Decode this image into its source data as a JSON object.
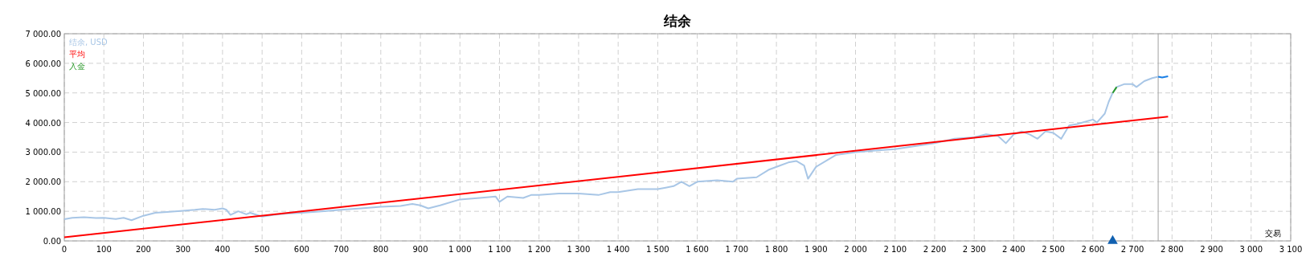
{
  "chart_data": {
    "type": "line",
    "title": "结余",
    "xlabel": "交易",
    "xlim": [
      0,
      3100
    ],
    "ylim": [
      0,
      7000
    ],
    "xticks": [
      0,
      100,
      200,
      300,
      400,
      500,
      600,
      700,
      800,
      900,
      {
        "value": 1000,
        "label": "1 000"
      },
      {
        "value": 1100,
        "label": "1 100"
      },
      {
        "value": 1200,
        "label": "1 200"
      },
      {
        "value": 1300,
        "label": "1 300"
      },
      {
        "value": 1400,
        "label": "1 400"
      },
      {
        "value": 1500,
        "label": "1 500"
      },
      {
        "value": 1600,
        "label": "1 600"
      },
      {
        "value": 1700,
        "label": "1 700"
      },
      {
        "value": 1800,
        "label": "1 800"
      },
      {
        "value": 1900,
        "label": "1 900"
      },
      {
        "value": 2000,
        "label": "2 000"
      },
      {
        "value": 2100,
        "label": "2 100"
      },
      {
        "value": 2200,
        "label": "2 200"
      },
      {
        "value": 2300,
        "label": "2 300"
      },
      {
        "value": 2400,
        "label": "2 400"
      },
      {
        "value": 2500,
        "label": "2 500"
      },
      {
        "value": 2600,
        "label": "2 600"
      },
      {
        "value": 2700,
        "label": "2 700"
      },
      {
        "value": 2800,
        "label": "2 800"
      },
      {
        "value": 2900,
        "label": "2 900"
      },
      {
        "value": 3000,
        "label": "3 000"
      },
      {
        "value": 3100,
        "label": "3 100"
      }
    ],
    "yticks": [
      {
        "value": 0,
        "label": "0.00"
      },
      {
        "value": 1000,
        "label": "1 000.00"
      },
      {
        "value": 2000,
        "label": "2 000.00"
      },
      {
        "value": 3000,
        "label": "3 000.00"
      },
      {
        "value": 4000,
        "label": "4 000.00"
      },
      {
        "value": 5000,
        "label": "5 000.00"
      },
      {
        "value": 6000,
        "label": "6 000.00"
      },
      {
        "value": 7000,
        "label": "7 000.00"
      }
    ],
    "grid": true,
    "legend": "top left",
    "line_style": "solid",
    "ref_lines": [
      {
        "axis": "x",
        "value": 2765,
        "color": "#a0a0a0"
      }
    ],
    "series": [
      {
        "name": "结余, USD",
        "color": "#a8c6e6",
        "x": [
          0,
          20,
          50,
          80,
          100,
          130,
          150,
          170,
          200,
          230,
          260,
          300,
          330,
          350,
          380,
          400,
          410,
          420,
          440,
          460,
          470,
          500,
          530,
          560,
          600,
          650,
          700,
          750,
          800,
          850,
          880,
          900,
          920,
          950,
          1000,
          1050,
          1090,
          1100,
          1120,
          1160,
          1180,
          1200,
          1250,
          1300,
          1350,
          1380,
          1400,
          1450,
          1500,
          1520,
          1540,
          1560,
          1580,
          1600,
          1650,
          1690,
          1700,
          1750,
          1780,
          1810,
          1830,
          1850,
          1870,
          1880,
          1900,
          1950,
          2000,
          2050,
          2100,
          2150,
          2200,
          2250,
          2300,
          2330,
          2360,
          2380,
          2400,
          2420,
          2440,
          2460,
          2480,
          2500,
          2520,
          2540,
          2560,
          2600,
          2610,
          2630,
          2640,
          2650,
          2660,
          2680,
          2700,
          2710,
          2730,
          2750,
          2765
        ],
        "values": [
          730,
          780,
          800,
          770,
          780,
          740,
          780,
          700,
          850,
          950,
          980,
          1020,
          1050,
          1080,
          1050,
          1100,
          1050,
          880,
          1000,
          900,
          950,
          820,
          880,
          920,
          950,
          1000,
          1050,
          1100,
          1150,
          1180,
          1250,
          1200,
          1100,
          1200,
          1400,
          1450,
          1500,
          1320,
          1500,
          1450,
          1550,
          1550,
          1600,
          1600,
          1550,
          1650,
          1650,
          1750,
          1750,
          1800,
          1850,
          2000,
          1850,
          2000,
          2050,
          2000,
          2100,
          2150,
          2400,
          2550,
          2650,
          2700,
          2550,
          2100,
          2500,
          2900,
          3000,
          3050,
          3100,
          3200,
          3300,
          3450,
          3500,
          3600,
          3550,
          3300,
          3600,
          3700,
          3600,
          3450,
          3700,
          3650,
          3450,
          3900,
          3950,
          4100,
          4000,
          4300,
          4700,
          5000,
          5200,
          5300,
          5300,
          5200,
          5400,
          5500,
          5550
        ]
      },
      {
        "color": "#1a7fe6",
        "x": [
          2765,
          2775,
          2790
        ],
        "values": [
          5550,
          5520,
          5560
        ]
      },
      {
        "name": "平均",
        "color": "#ff0000",
        "x": [
          0,
          2790
        ],
        "values": [
          120,
          4200
        ]
      },
      {
        "name": "入金",
        "color": "#2a9a2a",
        "x": [
          2650,
          2660
        ],
        "values": [
          5000,
          5200
        ]
      },
      {
        "type": "scatter",
        "marker": "triangle",
        "color": "#1060b0",
        "x": [
          2650
        ],
        "values": [
          0
        ]
      }
    ]
  }
}
